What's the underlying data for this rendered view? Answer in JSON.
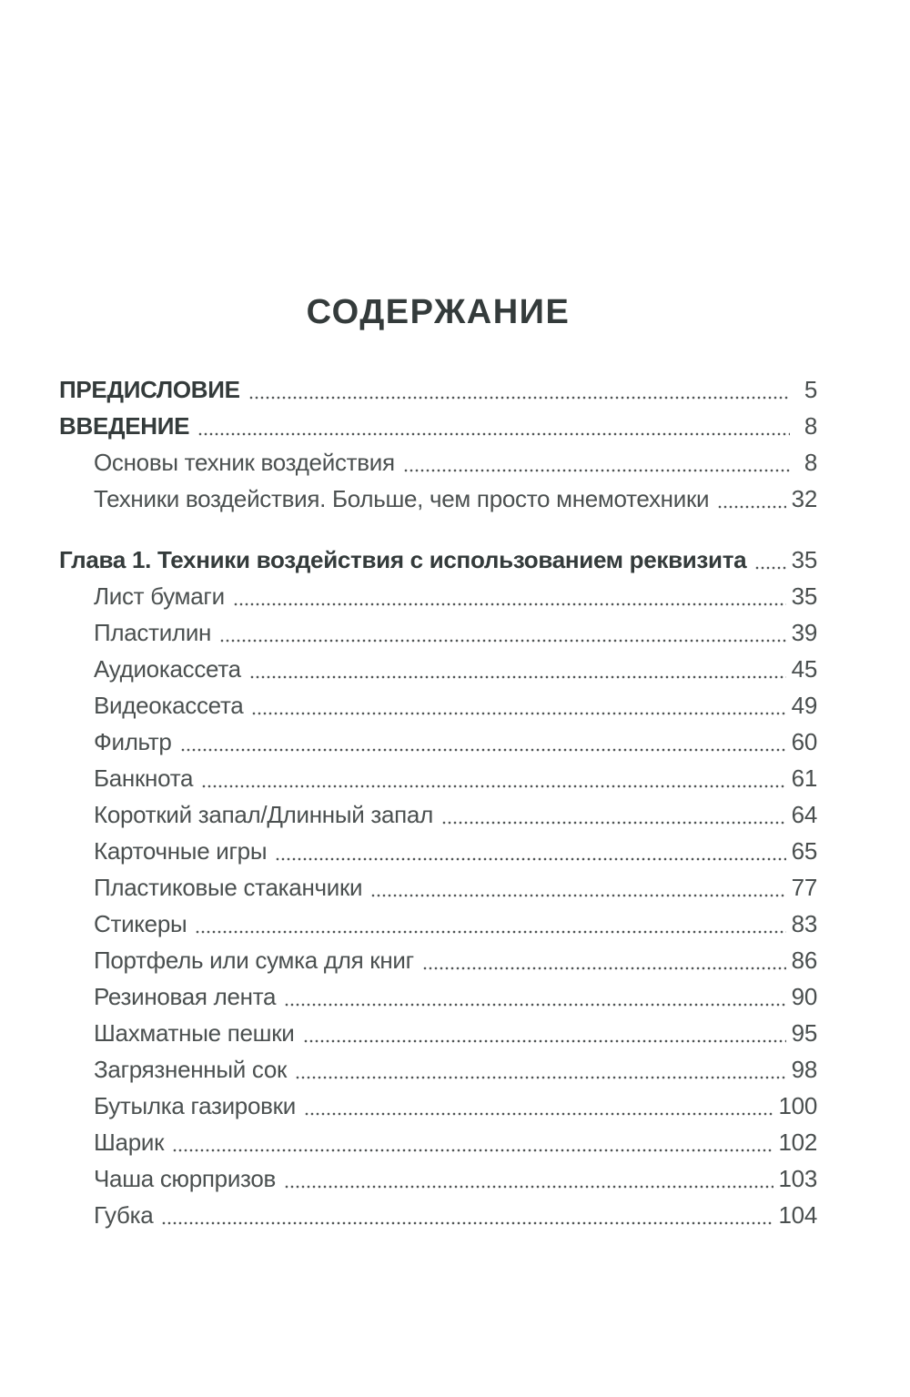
{
  "page": {
    "title": "СОДЕРЖАНИЕ"
  },
  "toc": {
    "sections": [
      {
        "entries": [
          {
            "label": "ПРЕДИСЛОВИЕ",
            "page": "5",
            "bold": true,
            "indent": false
          },
          {
            "label": "ВВЕДЕНИЕ",
            "page": "8",
            "bold": true,
            "indent": false
          },
          {
            "label": "Основы техник воздействия",
            "page": "8",
            "bold": false,
            "indent": true
          },
          {
            "label": "Техники воздействия. Больше, чем просто мнемотехники",
            "page": "32",
            "bold": false,
            "indent": true
          }
        ]
      },
      {
        "entries": [
          {
            "label": "Глава 1. Техники воздействия с использованием реквизита",
            "page": "35",
            "bold": true,
            "indent": false
          },
          {
            "label": "Лист бумаги",
            "page": "35",
            "bold": false,
            "indent": true
          },
          {
            "label": "Пластилин",
            "page": "39",
            "bold": false,
            "indent": true
          },
          {
            "label": "Аудиокассета",
            "page": "45",
            "bold": false,
            "indent": true
          },
          {
            "label": "Видеокассета",
            "page": "49",
            "bold": false,
            "indent": true
          },
          {
            "label": "Фильтр",
            "page": "60",
            "bold": false,
            "indent": true
          },
          {
            "label": "Банкнота",
            "page": "61",
            "bold": false,
            "indent": true
          },
          {
            "label": "Короткий запал/Длинный запал",
            "page": "64",
            "bold": false,
            "indent": true
          },
          {
            "label": "Карточные игры",
            "page": "65",
            "bold": false,
            "indent": true
          },
          {
            "label": "Пластиковые стаканчики",
            "page": "77",
            "bold": false,
            "indent": true
          },
          {
            "label": "Стикеры",
            "page": "83",
            "bold": false,
            "indent": true
          },
          {
            "label": "Портфель или сумка для книг",
            "page": "86",
            "bold": false,
            "indent": true
          },
          {
            "label": "Резиновая лента",
            "page": "90",
            "bold": false,
            "indent": true
          },
          {
            "label": "Шахматные пешки",
            "page": "95",
            "bold": false,
            "indent": true
          },
          {
            "label": "Загрязненный сок",
            "page": "98",
            "bold": false,
            "indent": true
          },
          {
            "label": "Бутылка газировки",
            "page": "100",
            "bold": false,
            "indent": true
          },
          {
            "label": "Шарик",
            "page": "102",
            "bold": false,
            "indent": true
          },
          {
            "label": "Чаша сюрпризов",
            "page": "103",
            "bold": false,
            "indent": true
          },
          {
            "label": "Губка",
            "page": "104",
            "bold": false,
            "indent": true
          }
        ]
      }
    ]
  },
  "colors": {
    "background": "#ffffff",
    "heading_text": "#343b3b",
    "body_text": "#4b5050",
    "page_number_text": "#4a4f4f",
    "dot_leader": "#505555"
  }
}
